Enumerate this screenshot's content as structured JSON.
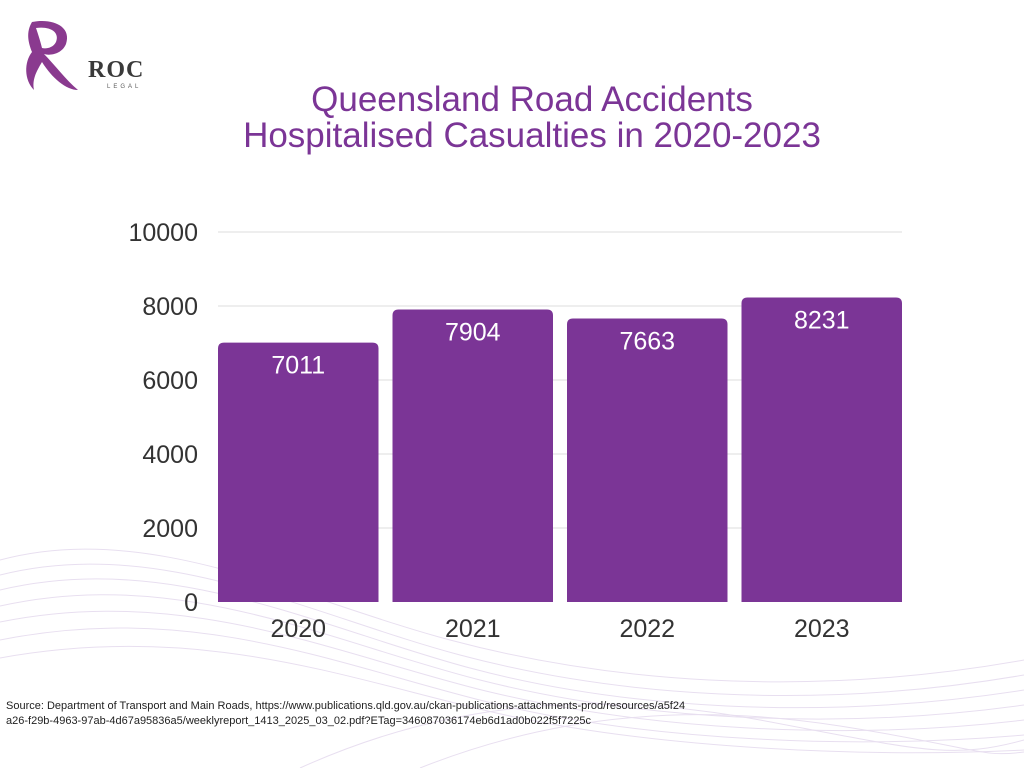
{
  "logo": {
    "name": "ROC",
    "subtitle": "LEGAL"
  },
  "title_lines": [
    "Queensland Road Accidents",
    "Hospitalised Casualties in 2020-2023"
  ],
  "colors": {
    "bar": "#7b3596",
    "title": "#7b3596",
    "axis_text": "#333333",
    "grid": "#dddddd",
    "label_text": "#ffffff"
  },
  "chart_data": {
    "type": "bar",
    "title": "Queensland Road Accidents Hospitalised Casualties in 2020-2023",
    "categories": [
      "2020",
      "2021",
      "2022",
      "2023"
    ],
    "values": [
      7011,
      7904,
      7663,
      8231
    ],
    "data_labels": [
      "7011",
      "7904",
      "7663",
      "8231"
    ],
    "yticks": [
      "0",
      "2000",
      "4000",
      "6000",
      "8000",
      "10000"
    ],
    "ytick_values": [
      0,
      2000,
      4000,
      6000,
      8000,
      10000
    ],
    "ylim": [
      0,
      10000
    ],
    "grid": true,
    "xlabel": "",
    "ylabel": ""
  },
  "source_text": "Source: Department of Transport and Main Roads, https://www.publications.qld.gov.au/ckan-publications-attachments-prod/resources/a5f24a26-f29b-4963-97ab-4d67a95836a5/weeklyreport_1413_2025_03_02.pdf?ETag=346087036174eb6d1ad0b022f5f7225c"
}
